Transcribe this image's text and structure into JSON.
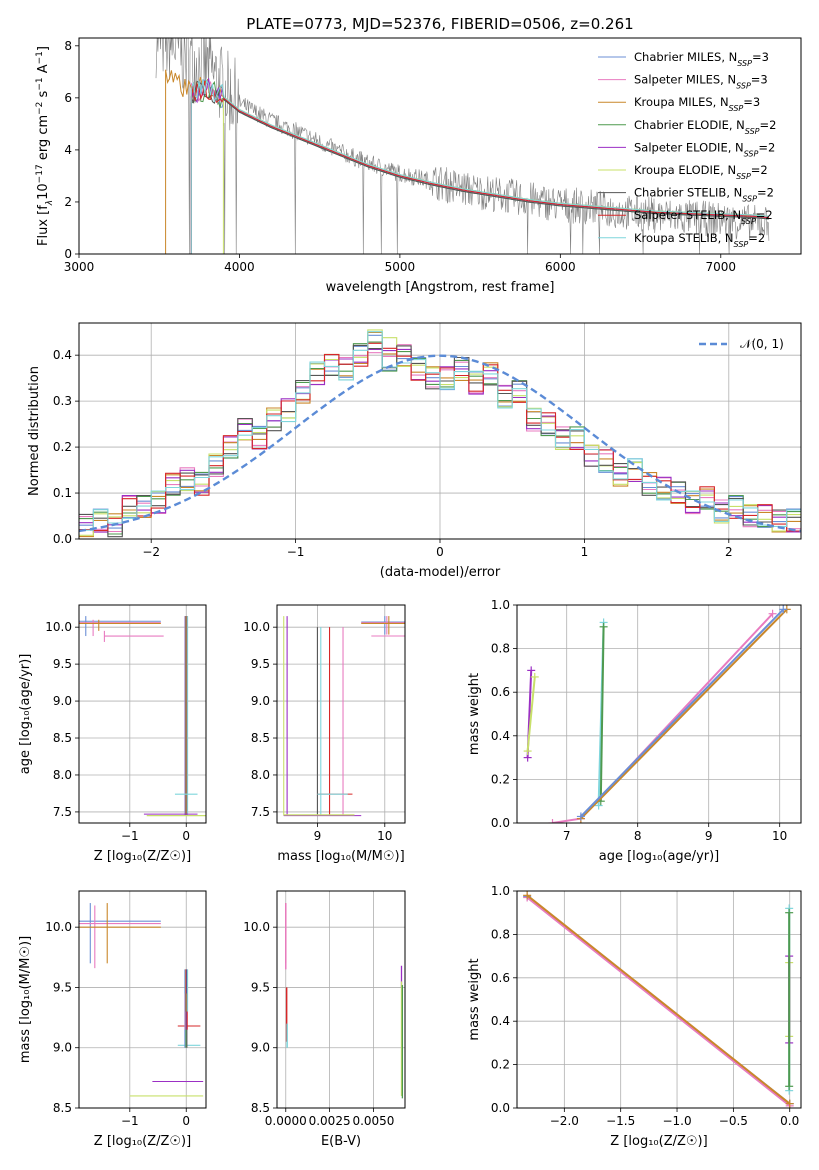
{
  "figure": {
    "title": "PLATE=0773, MJD=52376, FIBERID=0506, z=0.261"
  },
  "models": [
    {
      "key": "chabrier_miles",
      "label_main": "Chabrier MILES, N",
      "label_sub": "SSP",
      "label_tail": "=3",
      "color": "#6b8fd6"
    },
    {
      "key": "salpeter_miles",
      "label_main": "Salpeter MILES, N",
      "label_sub": "SSP",
      "label_tail": "=3",
      "color": "#e87bc0"
    },
    {
      "key": "kroupa_miles",
      "label_main": "Kroupa MILES, N",
      "label_sub": "SSP",
      "label_tail": "=3",
      "color": "#c9872a"
    },
    {
      "key": "chabrier_elodie",
      "label_main": "Chabrier ELODIE, N",
      "label_sub": "SSP",
      "label_tail": "=2",
      "color": "#4f9a4f"
    },
    {
      "key": "salpeter_elodie",
      "label_main": "Salpeter ELODIE, N",
      "label_sub": "SSP",
      "label_tail": "=2",
      "color": "#9b2fc4"
    },
    {
      "key": "kroupa_elodie",
      "label_main": "Kroupa ELODIE, N",
      "label_sub": "SSP",
      "label_tail": "=2",
      "color": "#c8e06a"
    },
    {
      "key": "chabrier_stelib",
      "label_main": "Chabrier STELIB, N",
      "label_sub": "SSP",
      "label_tail": "=2",
      "color": "#555555"
    },
    {
      "key": "salpeter_stelib",
      "label_main": "Salpeter STELIB, N",
      "label_sub": "SSP",
      "label_tail": "=2",
      "color": "#d62728"
    },
    {
      "key": "kroupa_stelib",
      "label_main": "Kroupa STELIB, N",
      "label_sub": "SSP",
      "label_tail": "=2",
      "color": "#7fd6dc"
    }
  ],
  "chart_data": [
    {
      "id": "spectrum",
      "type": "line",
      "xlabel": "wavelength [Angstrom, rest frame]",
      "ylabel_parts": [
        "Flux [f",
        "λ",
        "10",
        "−17",
        " erg cm",
        "−2",
        " s",
        "−1",
        " A",
        "−1",
        "]"
      ],
      "xlim": [
        3000,
        7500
      ],
      "ylim": [
        0,
        8.3
      ],
      "xticks": [
        3000,
        4000,
        5000,
        6000,
        7000
      ],
      "yticks": [
        0,
        2,
        4,
        6,
        8
      ],
      "grid": false,
      "legend": "upper-right",
      "data_series": {
        "name": "",
        "color": "#808080",
        "x": [
          3500,
          3600,
          3700,
          3800,
          3900,
          4000,
          4200,
          4400,
          4600,
          4800,
          5000,
          5200,
          5400,
          5600,
          5800,
          6000,
          6200,
          6400,
          6600,
          6800,
          7000,
          7200,
          7300
        ],
        "y": [
          8.3,
          8.0,
          7.4,
          7.2,
          6.4,
          5.8,
          5.1,
          4.6,
          4.0,
          3.5,
          3.1,
          2.8,
          2.5,
          2.3,
          2.1,
          1.9,
          1.8,
          1.6,
          1.5,
          1.4,
          1.3,
          1.2,
          1.2
        ]
      },
      "model_curve": {
        "x": [
          3540,
          3600,
          3700,
          3800,
          3900,
          4000,
          4200,
          4400,
          4600,
          4800,
          5000,
          5200,
          5400,
          5600,
          5800,
          6000,
          6200,
          6400,
          6600,
          6800,
          7000,
          7200,
          7300
        ],
        "y": [
          6.7,
          6.5,
          6.2,
          6.4,
          6.0,
          5.5,
          4.9,
          4.4,
          3.9,
          3.4,
          3.0,
          2.7,
          2.45,
          2.25,
          2.05,
          1.9,
          1.8,
          1.7,
          1.6,
          1.55,
          1.5,
          1.45,
          1.4
        ]
      }
    },
    {
      "id": "residuals",
      "type": "line",
      "xlabel": "(data-model)/error",
      "ylabel": "Normed distribution",
      "xlim": [
        -2.5,
        2.5
      ],
      "ylim": [
        0,
        0.47
      ],
      "xticks": [
        -2,
        -1,
        0,
        1,
        2
      ],
      "yticks": [
        0.0,
        0.1,
        0.2,
        0.3,
        0.4
      ],
      "grid": true,
      "legend": "upper-right",
      "gaussian_label": "𝒩(0, 1)",
      "gaussian_color": "#5b8bd6",
      "hist_x": [
        -2.5,
        -2.4,
        -2.3,
        -2.2,
        -2.1,
        -2.0,
        -1.9,
        -1.8,
        -1.7,
        -1.6,
        -1.5,
        -1.4,
        -1.3,
        -1.2,
        -1.1,
        -1.0,
        -0.9,
        -0.8,
        -0.7,
        -0.6,
        -0.5,
        -0.4,
        -0.3,
        -0.2,
        -0.1,
        0.0,
        0.1,
        0.2,
        0.3,
        0.4,
        0.5,
        0.6,
        0.7,
        0.8,
        0.9,
        1.0,
        1.1,
        1.2,
        1.3,
        1.4,
        1.5,
        1.6,
        1.7,
        1.8,
        1.9,
        2.0,
        2.1,
        2.2,
        2.3,
        2.4
      ],
      "hist_base": [
        0.03,
        0.04,
        0.03,
        0.07,
        0.07,
        0.08,
        0.12,
        0.13,
        0.12,
        0.16,
        0.2,
        0.24,
        0.22,
        0.26,
        0.28,
        0.32,
        0.36,
        0.38,
        0.37,
        0.4,
        0.43,
        0.39,
        0.4,
        0.37,
        0.35,
        0.35,
        0.37,
        0.34,
        0.36,
        0.31,
        0.32,
        0.26,
        0.25,
        0.22,
        0.22,
        0.18,
        0.17,
        0.14,
        0.15,
        0.12,
        0.11,
        0.1,
        0.08,
        0.09,
        0.06,
        0.07,
        0.05,
        0.05,
        0.04,
        0.04
      ]
    },
    {
      "id": "age_vs_Z",
      "type": "scatter",
      "xlabel": "Z [log₁₀(Z/Z☉)]",
      "ylabel": "age  [log₁₀(age/yr)]",
      "xlim": [
        -1.9,
        0.35
      ],
      "ylim": [
        7.35,
        10.3
      ],
      "xticks": [
        -1,
        0
      ],
      "yticks": [
        7.5,
        8.0,
        8.5,
        9.0,
        9.5,
        10.0
      ],
      "grid": true
    },
    {
      "id": "age_vs_mass",
      "type": "scatter",
      "xlabel": "mass [log₁₀(M/M☉)]",
      "xlim": [
        8.4,
        10.3
      ],
      "ylim": [
        7.35,
        10.3
      ],
      "xticks": [
        9,
        10
      ],
      "yticks": [
        7.5,
        8.0,
        8.5,
        9.0,
        9.5,
        10.0
      ],
      "grid": true
    },
    {
      "id": "weight_vs_age",
      "type": "line",
      "xlabel": "age  [log₁₀(age/yr)]",
      "ylabel": "mass weight",
      "xlim": [
        6.3,
        10.3
      ],
      "ylim": [
        0,
        1
      ],
      "xticks": [
        7,
        8,
        9,
        10
      ],
      "yticks": [
        0.0,
        0.2,
        0.4,
        0.6,
        0.8,
        1.0
      ],
      "grid": true
    },
    {
      "id": "mass_vs_Z",
      "type": "scatter",
      "xlabel": "Z [log₁₀(Z/Z☉)]",
      "ylabel": "mass [log₁₀(M/M☉)]",
      "xlim": [
        -1.9,
        0.35
      ],
      "ylim": [
        8.5,
        10.3
      ],
      "xticks": [
        -1,
        0
      ],
      "yticks": [
        8.5,
        9.0,
        9.5,
        10.0
      ],
      "grid": true
    },
    {
      "id": "mass_vs_ebv",
      "type": "scatter",
      "xlabel": "E(B-V)",
      "xlim": [
        -0.0005,
        0.0068
      ],
      "ylim": [
        8.5,
        10.3
      ],
      "xticks": [
        0.0,
        0.0025,
        0.005
      ],
      "xtick_labels": [
        "0.0000",
        "0.0025",
        "0.0050"
      ],
      "yticks": [
        8.5,
        9.0,
        9.5,
        10.0
      ],
      "grid": true
    },
    {
      "id": "weight_vs_Z",
      "type": "line",
      "xlabel": "Z [log₁₀(Z/Z☉)]",
      "ylabel": "mass weight",
      "xlim": [
        -2.42,
        0.1
      ],
      "ylim": [
        0,
        1
      ],
      "xticks": [
        -2.0,
        -1.5,
        -1.0,
        -0.5,
        0.0
      ],
      "yticks": [
        0.0,
        0.2,
        0.4,
        0.6,
        0.8,
        1.0
      ],
      "grid": true
    }
  ]
}
